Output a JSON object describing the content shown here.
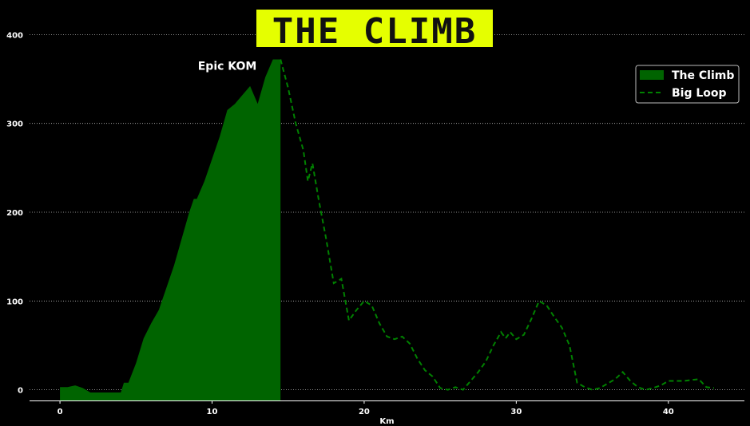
{
  "chart_data": {
    "type": "area",
    "title": "THE CLIMB",
    "xlabel": "Km",
    "ylabel": "",
    "xlim": [
      -2,
      45
    ],
    "ylim": [
      -12,
      412
    ],
    "xticks": [
      0,
      10,
      20,
      30,
      40
    ],
    "yticks": [
      0,
      100,
      200,
      300,
      400
    ],
    "grid": "horizontal-dotted",
    "legend_position": "top-right",
    "annotation": {
      "text": "Epic KOM",
      "x": 11,
      "y": 365
    },
    "colors": {
      "title_bg": "#e5ff00",
      "area": "#006400",
      "line": "#008000",
      "background": "#000000"
    },
    "series": [
      {
        "name": "The Climb",
        "style": "filled-area",
        "x": [
          0,
          0.5,
          1,
          1.5,
          2,
          2.5,
          3,
          3.5,
          4,
          4.2,
          4.5,
          5,
          5.5,
          6,
          6.5,
          7,
          7.5,
          8,
          8.5,
          8.8,
          9,
          9.5,
          10,
          10.5,
          11,
          11.5,
          12,
          12.5,
          13,
          13.5,
          14,
          14.5
        ],
        "y": [
          3,
          3,
          5,
          2,
          -3,
          -3,
          -3,
          -3,
          -3,
          8,
          8,
          30,
          58,
          75,
          90,
          115,
          140,
          170,
          200,
          215,
          215,
          235,
          260,
          285,
          315,
          322,
          332,
          342,
          322,
          352,
          372,
          372
        ]
      },
      {
        "name": "Big Loop",
        "style": "dashed-line",
        "x": [
          14.5,
          15,
          15.5,
          16,
          16.3,
          16.6,
          17,
          17.5,
          18,
          18.5,
          19,
          19.5,
          20,
          20.5,
          21,
          21.5,
          22,
          22.5,
          23,
          23.5,
          24,
          24.5,
          25,
          25.5,
          26,
          26.5,
          27,
          27.5,
          28,
          28.5,
          29,
          29.3,
          29.6,
          30,
          30.5,
          31,
          31.5,
          32,
          32.5,
          33,
          33.5,
          34,
          34.5,
          35,
          35.5,
          36,
          36.5,
          37,
          37.5,
          38,
          38.5,
          39,
          39.5,
          40,
          40.5,
          41,
          41.5,
          42,
          42.5,
          43
        ],
        "y": [
          372,
          340,
          300,
          270,
          235,
          255,
          215,
          170,
          120,
          125,
          78,
          90,
          100,
          95,
          75,
          60,
          57,
          60,
          52,
          35,
          22,
          15,
          2,
          0,
          3,
          0,
          10,
          20,
          32,
          50,
          65,
          58,
          65,
          57,
          62,
          80,
          100,
          95,
          82,
          70,
          50,
          8,
          3,
          0,
          2,
          7,
          12,
          20,
          10,
          3,
          0,
          2,
          5,
          10,
          10,
          10,
          11,
          12,
          3,
          2
        ]
      }
    ]
  }
}
